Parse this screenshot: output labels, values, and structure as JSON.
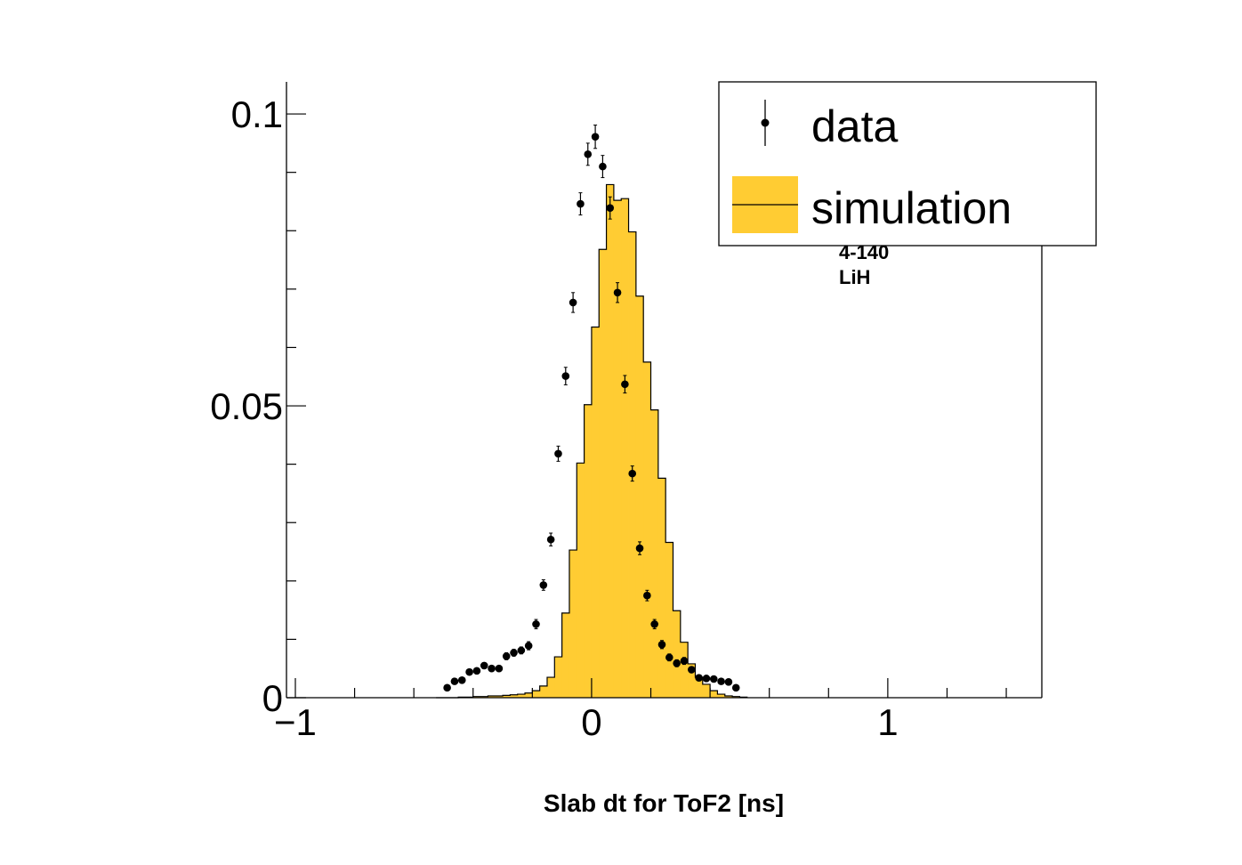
{
  "chart_data": {
    "type": "histogram",
    "xlabel": "Slab dt for ToF2 [ns]",
    "ylabel": "",
    "xlim": [
      -1.03,
      1.52
    ],
    "ylim": [
      0,
      0.1055
    ],
    "x_ticks": [
      {
        "value": -1,
        "label": "−1"
      },
      {
        "value": 0,
        "label": "0"
      },
      {
        "value": 1,
        "label": "1"
      }
    ],
    "y_ticks": [
      {
        "value": 0,
        "label": "0"
      },
      {
        "value": 0.05,
        "label": "0.05"
      },
      {
        "value": 0.1,
        "label": "0.1"
      }
    ],
    "annotations": [
      "4-140",
      "LiH"
    ],
    "legend": {
      "position": "top-right",
      "entries": [
        {
          "label": "data",
          "style": "points"
        },
        {
          "label": "simulation",
          "style": "fill"
        }
      ]
    },
    "colors": {
      "simulation_fill": "#ffcc33",
      "data": "#000000"
    },
    "series": [
      {
        "name": "simulation",
        "kind": "filled-histogram",
        "bin_edges": [
          -0.525,
          -0.5,
          -0.475,
          -0.45,
          -0.425,
          -0.4,
          -0.375,
          -0.35,
          -0.325,
          -0.3,
          -0.275,
          -0.25,
          -0.225,
          -0.2,
          -0.175,
          -0.15,
          -0.125,
          -0.1,
          -0.075,
          -0.05,
          -0.025,
          0,
          0.025,
          0.05,
          0.075,
          0.1,
          0.125,
          0.15,
          0.175,
          0.2,
          0.225,
          0.25,
          0.275,
          0.3,
          0.325,
          0.35,
          0.375,
          0.4,
          0.425,
          0.45,
          0.475,
          0.5,
          0.525
        ],
        "values": [
          0,
          0,
          0,
          0.0001,
          0.0001,
          0.0002,
          0.0002,
          0.0003,
          0.0003,
          0.0004,
          0.0005,
          0.0006,
          0.0008,
          0.0012,
          0.002,
          0.0035,
          0.007,
          0.0145,
          0.0253,
          0.0402,
          0.0502,
          0.0635,
          0.0768,
          0.0879,
          0.0852,
          0.0855,
          0.0798,
          0.0688,
          0.0575,
          0.0493,
          0.0376,
          0.0266,
          0.0149,
          0.0095,
          0.0058,
          0.0035,
          0.0023,
          0.0012,
          0.0006,
          0.0003,
          0.0002,
          0.0001
        ]
      },
      {
        "name": "data",
        "kind": "points-with-errors",
        "x": [
          -0.4875,
          -0.4625,
          -0.4375,
          -0.4125,
          -0.3875,
          -0.3625,
          -0.3375,
          -0.3125,
          -0.2875,
          -0.2625,
          -0.2375,
          -0.2125,
          -0.1875,
          -0.1625,
          -0.1375,
          -0.1125,
          -0.0875,
          -0.0625,
          -0.0375,
          -0.0125,
          0.0125,
          0.0375,
          0.0625,
          0.0875,
          0.1125,
          0.1375,
          0.1625,
          0.1875,
          0.2125,
          0.2375,
          0.2625,
          0.2875,
          0.3125,
          0.3375,
          0.3625,
          0.3875,
          0.4125,
          0.4375,
          0.4625,
          0.4875
        ],
        "y": [
          0.0017,
          0.0028,
          0.003,
          0.0044,
          0.0046,
          0.0055,
          0.005,
          0.005,
          0.0071,
          0.0077,
          0.0081,
          0.0089,
          0.0126,
          0.0193,
          0.0271,
          0.0418,
          0.0551,
          0.0677,
          0.0846,
          0.0931,
          0.0961,
          0.091,
          0.0839,
          0.0694,
          0.0537,
          0.0384,
          0.0256,
          0.0175,
          0.0126,
          0.0091,
          0.0069,
          0.0059,
          0.0063,
          0.0048,
          0.0034,
          0.0033,
          0.0032,
          0.0028,
          0.0027,
          0.0017
        ],
        "yerr": [
          0.0004,
          0.0004,
          0.0004,
          0.0005,
          0.0005,
          0.0005,
          0.0005,
          0.0005,
          0.0006,
          0.0006,
          0.0006,
          0.0007,
          0.0008,
          0.0009,
          0.0011,
          0.0013,
          0.0015,
          0.0017,
          0.0019,
          0.0019,
          0.002,
          0.0019,
          0.0019,
          0.0017,
          0.0015,
          0.0013,
          0.0011,
          0.0009,
          0.0008,
          0.0007,
          0.0006,
          0.0006,
          0.0006,
          0.0005,
          0.0005,
          0.0005,
          0.0005,
          0.0004,
          0.0004,
          0.0004
        ]
      }
    ]
  }
}
